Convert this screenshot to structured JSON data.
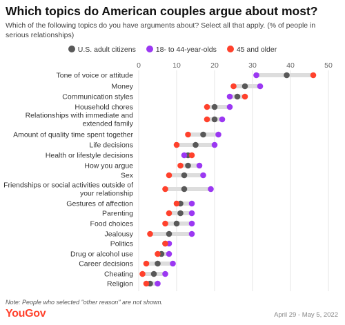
{
  "title": "Which topics do American couples argue about most?",
  "subtitle": "Which of the following topics do you have arguments about? Select all that apply. (% of people in serious relationships)",
  "note": "Note: People who selected \"other reason\" are not shown.",
  "source": "YouGov",
  "date_range": "April 29 - May 5, 2022",
  "colors": {
    "all": "#595959",
    "young": "#9b38f2",
    "older": "#ff412c",
    "connector": "#dddddd",
    "grid": "#e6e6e6"
  },
  "chart_data": {
    "type": "dot",
    "title": "Which topics do American couples argue about most?",
    "xlim": [
      0,
      50
    ],
    "xticks": [
      "0",
      "10",
      "20",
      "30",
      "40",
      "50"
    ],
    "grid": true,
    "legend_position": "top",
    "categories": [
      [
        "Tone of voice or attitude"
      ],
      [
        "Money"
      ],
      [
        "Communication styles"
      ],
      [
        "Household chores"
      ],
      [
        "Relationships with immediate and",
        "extended family"
      ],
      [
        "Amount of quality time spent together"
      ],
      [
        "Life decisions"
      ],
      [
        "Health or lifestyle decisions"
      ],
      [
        "How you argue"
      ],
      [
        "Sex"
      ],
      [
        "Friendships or social activities outside of",
        "your relationship"
      ],
      [
        "Gestures of affection"
      ],
      [
        "Parenting"
      ],
      [
        "Food choices"
      ],
      [
        "Jealousy"
      ],
      [
        "Politics"
      ],
      [
        "Drug or alcohol use"
      ],
      [
        "Career decisions"
      ],
      [
        "Cheating"
      ],
      [
        "Religion"
      ]
    ],
    "series": [
      {
        "name": "U.S. adult citizens",
        "key": "all",
        "values": [
          39,
          28,
          26,
          20,
          20,
          17,
          15,
          13,
          13,
          12,
          12,
          11,
          11,
          10,
          8,
          7,
          6,
          5,
          4,
          3
        ]
      },
      {
        "name": "18- to 44-year-olds",
        "key": "young",
        "values": [
          31,
          32,
          24,
          24,
          22,
          21,
          20,
          12,
          16,
          17,
          19,
          14,
          14,
          14,
          14,
          8,
          8,
          9,
          7,
          5
        ]
      },
      {
        "name": "45 and older",
        "key": "older",
        "values": [
          46,
          25,
          28,
          18,
          18,
          13,
          10,
          14,
          11,
          8,
          7,
          10,
          8,
          7,
          3,
          7,
          5,
          2,
          1,
          2
        ]
      }
    ]
  }
}
